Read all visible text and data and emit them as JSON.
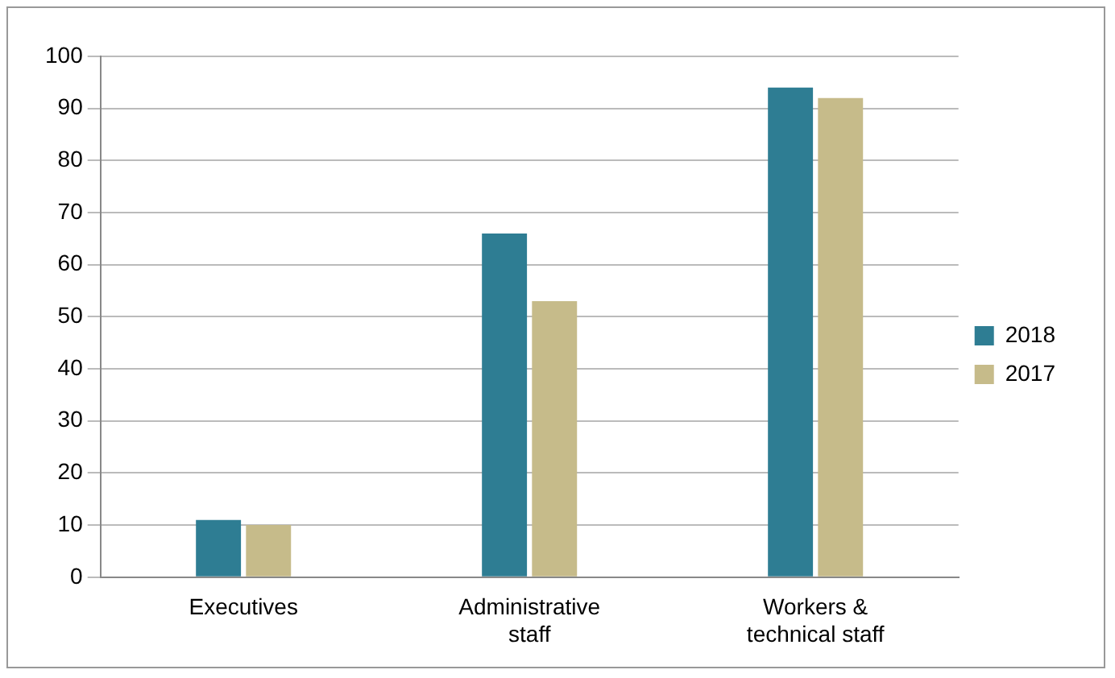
{
  "chart_data": {
    "type": "bar",
    "categories": [
      "Executives",
      "Administrative staff",
      "Workers & technical staff"
    ],
    "series": [
      {
        "name": "2018",
        "color": "#2e7d93",
        "values": [
          11,
          66,
          94
        ]
      },
      {
        "name": "2017",
        "color": "#c6bb8a",
        "values": [
          10,
          53,
          92
        ]
      }
    ],
    "ylim": [
      0,
      100
    ],
    "yticks": [
      0,
      10,
      20,
      30,
      40,
      50,
      60,
      70,
      80,
      90,
      100
    ],
    "grid": "y",
    "legend": "right"
  }
}
